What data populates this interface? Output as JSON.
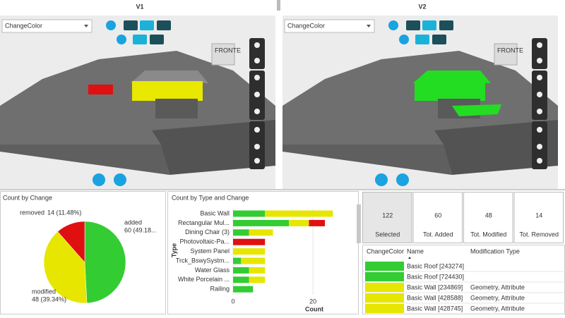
{
  "viewers": [
    {
      "label": "V1",
      "dropdown": "ChangeColor",
      "model_label": "FRONTE"
    },
    {
      "label": "V2",
      "dropdown": "ChangeColor",
      "model_label": "FRONTE"
    }
  ],
  "chart_data": [
    {
      "type": "pie",
      "title": "Count by Change",
      "categories": [
        "added",
        "modified",
        "removed"
      ],
      "values": [
        60,
        48,
        14
      ],
      "value_labels": [
        "60 (49.18...",
        "48 (39.34%)",
        "14 (11.48%)"
      ],
      "colors": [
        "#33cc33",
        "#e6e600",
        "#e01010"
      ]
    },
    {
      "type": "bar",
      "orientation": "horizontal",
      "stacked": true,
      "title": "Count by Type and Change",
      "x_label": "Count",
      "y_label": "Type",
      "categories": [
        "Basic Wall",
        "Rectangular Mul...",
        "Dining Chair (3)",
        "Photovoltaic-Pa...",
        "System Panel",
        "Trck_BswySystm...",
        "Water Glass",
        "White Porcelain ...",
        "Railing"
      ],
      "series": [
        {
          "color": "#33cc33",
          "values": [
            8,
            14,
            4,
            0,
            0,
            2,
            4,
            4,
            5
          ]
        },
        {
          "color": "#e6e600",
          "values": [
            17,
            5,
            6,
            0,
            8,
            6,
            4,
            4,
            0
          ]
        },
        {
          "color": "#e01010",
          "values": [
            0,
            4,
            0,
            8,
            0,
            0,
            0,
            0,
            0
          ]
        }
      ],
      "xlim": [
        0,
        26
      ],
      "xticks": [
        0,
        20
      ]
    }
  ],
  "cards": [
    {
      "value": 122,
      "label": "Selected",
      "color": "#222222"
    },
    {
      "value": 60,
      "label": "Tot. Added",
      "color": "#33cc33"
    },
    {
      "value": 48,
      "label": "Tot. Modified",
      "color": "#e6e600"
    },
    {
      "value": 14,
      "label": "Tot. Removed",
      "color": "#e01010"
    }
  ],
  "table": {
    "columns": [
      "ChangeColor",
      "Name",
      "Modification Type"
    ],
    "rows": [
      {
        "color": "#33cc33",
        "name": "Basic Roof [243274]",
        "modification": null
      },
      {
        "color": "#33cc33",
        "name": "Basic Roof [724430]",
        "modification": null
      },
      {
        "color": "#e6e600",
        "name": "Basic Wall [234869]",
        "modification": "Geometry, Attribute"
      },
      {
        "color": "#e6e600",
        "name": "Basic Wall [428588]",
        "modification": "Geometry, Attribute"
      },
      {
        "color": "#e6e600",
        "name": "Basic Wall [428745]",
        "modification": "Geometry, Attribute"
      }
    ]
  }
}
